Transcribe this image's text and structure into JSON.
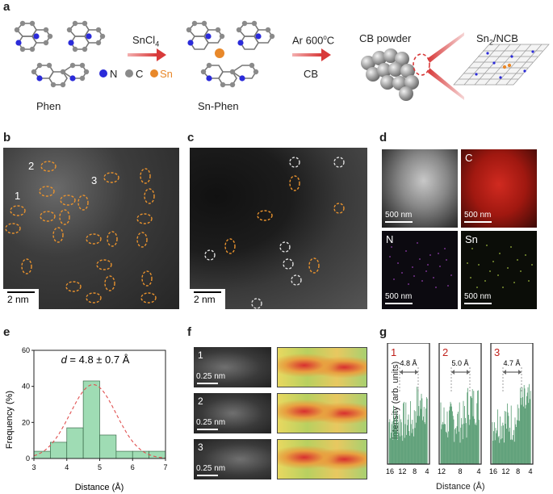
{
  "panels": {
    "a": "a",
    "b": "b",
    "c": "c",
    "d": "d",
    "e": "e",
    "f": "f",
    "g": "g"
  },
  "scheme": {
    "phen_label": "Phen",
    "reagent": "SnCl",
    "reagent_sub": "4",
    "sn_phen_label": "Sn-Phen",
    "condition_top": "Ar 600",
    "condition_sup": "o",
    "condition_c": "C",
    "condition_bottom": "CB",
    "cb_powder": "CB powder",
    "product": "Sn",
    "product_sub": "2",
    "product_suffix": "/NCB",
    "legend": {
      "n": "N",
      "c": "C",
      "sn": "Sn"
    },
    "colors": {
      "n": "#2b2bd9",
      "c": "#8a8a8a",
      "sn": "#e8882a"
    }
  },
  "panel_b": {
    "labels": [
      "1",
      "2",
      "3"
    ],
    "scale": "2 nm"
  },
  "panel_c": {
    "scale": "2 nm"
  },
  "panel_d": {
    "maps": [
      {
        "label": "",
        "scale": "500 nm"
      },
      {
        "label": "C",
        "scale": "500 nm"
      },
      {
        "label": "N",
        "scale": "500 nm"
      },
      {
        "label": "Sn",
        "scale": "500 nm"
      }
    ]
  },
  "panel_f": {
    "rows": [
      "1",
      "2",
      "3"
    ],
    "scale": "0.25 nm"
  },
  "panel_g": {
    "ylabel": "Intensity (arb. units)",
    "xlabel": "Distance (Å)",
    "plots": [
      {
        "id": "1",
        "distance": "4.8 Å",
        "ticks": [
          "16",
          "12",
          "8",
          "4"
        ]
      },
      {
        "id": "2",
        "distance": "5.0 Å",
        "ticks": [
          "12",
          "8",
          "4"
        ]
      },
      {
        "id": "3",
        "distance": "4.7 Å",
        "ticks": [
          "16",
          "12",
          "8",
          "4"
        ]
      }
    ]
  },
  "chart_data": {
    "type": "bar",
    "title": "d = 4.8 ± 0.7 Å",
    "title_d": "d",
    "title_rest": " = 4.8 ± 0.7 Å",
    "xlabel": "Distance (Å)",
    "ylabel": "Frequency (%)",
    "xlim": [
      3,
      7
    ],
    "ylim": [
      0,
      60
    ],
    "xticks": [
      3,
      4,
      5,
      6,
      7
    ],
    "yticks": [
      0,
      20,
      40,
      60
    ],
    "bin_edges": [
      3,
      3.5,
      4,
      4.5,
      5,
      5.5,
      6,
      6.5,
      7
    ],
    "values": [
      4,
      9,
      17,
      43,
      13,
      4,
      4,
      4
    ],
    "fit": {
      "type": "gaussian",
      "mean": 4.8,
      "sigma": 0.7,
      "peak": 41
    },
    "bar_color": "#9fdcb4",
    "fit_color": "#e05050"
  }
}
